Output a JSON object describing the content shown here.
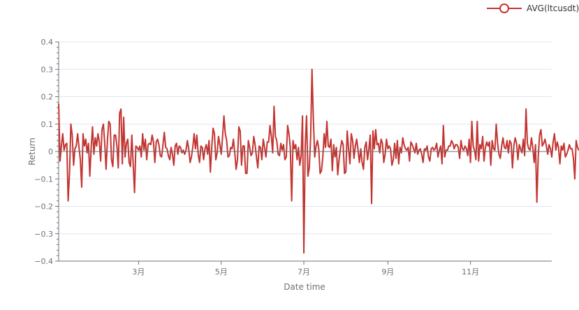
{
  "chart_data": {
    "type": "line",
    "xlabel": "Date time",
    "ylabel": "Return",
    "ylim": [
      -0.4,
      0.4
    ],
    "yticks": [
      -0.4,
      -0.3,
      -0.2,
      -0.1,
      0,
      0.1,
      0.2,
      0.3,
      0.4
    ],
    "ytick_labels": [
      "−0.4",
      "−0.3",
      "−0.2",
      "−0.1",
      "0",
      "0.1",
      "0.2",
      "0.3",
      "0.4"
    ],
    "xlim": [
      "2021-01-01",
      "2021-12-31"
    ],
    "xticks": [
      {
        "date": "2021-03-01",
        "label": "3月"
      },
      {
        "date": "2021-05-01",
        "label": "5月"
      },
      {
        "date": "2021-07-01",
        "label": "7月"
      },
      {
        "date": "2021-09-01",
        "label": "9月"
      },
      {
        "date": "2021-11-01",
        "label": "11月"
      }
    ],
    "grid": "horizontal",
    "legend_position": "top-right",
    "series": [
      {
        "name": "AVG(ltcusdt)",
        "color": "#c23531",
        "x_start": "2021-01-01",
        "x_step": "1 day",
        "values": [
          0.175,
          -0.035,
          0.02,
          0.065,
          0.005,
          0.025,
          0.03,
          -0.18,
          -0.08,
          0.1,
          0.06,
          -0.05,
          0.01,
          0.02,
          0.065,
          0.015,
          -0.03,
          -0.13,
          0.065,
          0.02,
          0.045,
          -0.005,
          0.03,
          -0.09,
          0.015,
          0.09,
          -0.01,
          0.05,
          0.02,
          0.065,
          0.035,
          -0.035,
          0.08,
          0.1,
          0.03,
          -0.065,
          0.04,
          0.11,
          0.1,
          -0.03,
          -0.055,
          0.06,
          0.06,
          0.02,
          -0.06,
          0.14,
          0.155,
          -0.045,
          0.125,
          -0.02,
          0.03,
          0.045,
          -0.04,
          -0.055,
          0.06,
          -0.045,
          -0.15,
          0.02,
          0.015,
          0.005,
          0.02,
          -0.02,
          0.065,
          0.005,
          0.045,
          -0.03,
          0.025,
          0.03,
          0.025,
          0.06,
          0.035,
          -0.04,
          0.035,
          0.045,
          0.025,
          -0.015,
          -0.02,
          0.025,
          0.07,
          0.015,
          0.01,
          -0.015,
          -0.03,
          0.015,
          -0.01,
          -0.05,
          0.02,
          0.03,
          -0.01,
          0.02,
          0.015,
          -0.005,
          0.005,
          -0.01,
          0.005,
          0.04,
          0.01,
          -0.04,
          -0.02,
          0.015,
          0.065,
          0.01,
          0.06,
          -0.01,
          -0.04,
          0.02,
          0.015,
          -0.03,
          0.01,
          0.025,
          -0.01,
          0.04,
          -0.075,
          0.015,
          0.085,
          0.065,
          -0.03,
          -0.005,
          0.055,
          0.025,
          -0.01,
          0.055,
          0.13,
          0.065,
          0.04,
          -0.02,
          -0.015,
          0.015,
          0.01,
          0.045,
          -0.005,
          -0.065,
          -0.03,
          0.09,
          0.075,
          -0.05,
          0.02,
          0.02,
          -0.08,
          -0.08,
          0.04,
          0.015,
          -0.015,
          -0.005,
          0.055,
          0.025,
          -0.02,
          -0.06,
          0.02,
          0.015,
          -0.03,
          0.045,
          0.015,
          -0.02,
          0.035,
          0.035,
          0.095,
          0.055,
          -0.005,
          0.165,
          0.055,
          0.04,
          -0.01,
          -0.015,
          0.03,
          0.005,
          0.025,
          -0.03,
          -0.02,
          0.095,
          0.065,
          0.015,
          -0.18,
          0.04,
          0.01,
          0.025,
          -0.03,
          0.015,
          -0.05,
          -0.015,
          0.13,
          -0.37,
          0.02,
          0.13,
          -0.09,
          -0.06,
          0.05,
          0.3,
          0.12,
          -0.02,
          0.02,
          0.04,
          0.01,
          -0.08,
          -0.07,
          -0.02,
          0.065,
          0.015,
          0.11,
          0.02,
          0.015,
          0.045,
          -0.07,
          0.025,
          -0.02,
          0.015,
          -0.085,
          -0.03,
          0.01,
          0.04,
          0.025,
          -0.08,
          -0.075,
          0.075,
          0.01,
          -0.045,
          0.065,
          0.04,
          -0.025,
          0.02,
          0.045,
          0.005,
          -0.04,
          0.01,
          -0.04,
          -0.065,
          0.015,
          0.035,
          -0.03,
          0.01,
          0.06,
          -0.19,
          0.075,
          0.01,
          0.08,
          0.025,
          0.03,
          -0.005,
          0.045,
          0.03,
          -0.04,
          -0.01,
          0.045,
          0.01,
          0.02,
          0.01,
          -0.05,
          -0.03,
          0.03,
          -0.025,
          0.04,
          -0.045,
          0.015,
          -0.005,
          0.05,
          0.025,
          0.01,
          0.005,
          0.015,
          -0.035,
          0.035,
          0.025,
          0.01,
          -0.005,
          0.03,
          -0.01,
          0.005,
          0.01,
          -0.01,
          -0.04,
          0.01,
          0.005,
          0.02,
          -0.02,
          -0.035,
          0.01,
          0.015,
          0.005,
          0.01,
          0.03,
          -0.02,
          0.005,
          0.02,
          -0.045,
          0.095,
          -0.02,
          0.005,
          0.005,
          0.02,
          0.02,
          0.04,
          0.03,
          0.01,
          0.025,
          0.025,
          0.015,
          -0.025,
          0.04,
          0.01,
          0.005,
          0.02,
          0.01,
          -0.015,
          0.045,
          -0.04,
          0.11,
          0.02,
          0.005,
          -0.03,
          0.11,
          -0.035,
          0.025,
          0.01,
          0.055,
          -0.035,
          0.015,
          0.035,
          0.02,
          0.035,
          -0.05,
          0.04,
          0.01,
          0.005,
          0.1,
          0.03,
          -0.01,
          -0.025,
          0.02,
          0.05,
          0.015,
          0.01,
          0.04,
          -0.005,
          0.04,
          0.03,
          -0.06,
          0.02,
          0.05,
          0.03,
          -0.03,
          0.025,
          0.01,
          -0.005,
          0.045,
          -0.015,
          0.155,
          0.03,
          0.01,
          0.005,
          0.05,
          0.015,
          -0.04,
          0.025,
          -0.185,
          -0.02,
          0.06,
          0.08,
          0.02,
          0.03,
          0.045,
          0.02,
          -0.01,
          0.025,
          0.01,
          -0.02,
          0.035,
          0.065,
          0.005,
          0.035,
          0.015,
          -0.045,
          0.02,
          0.005,
          0.03,
          -0.02,
          -0.01,
          0.005,
          0.025,
          0.01,
          0.01,
          -0.025,
          -0.1,
          0.04,
          0.015,
          0.005,
          0.01,
          0.085,
          0.035,
          -0.025,
          -0.02,
          0.015,
          0.08,
          0.035,
          0.02,
          -0.055,
          -0.005,
          0.04,
          0.02,
          0.025,
          0.005,
          0.01,
          0.03,
          0.025,
          -0.01,
          0.02,
          0.035,
          -0.025,
          0.005,
          0.015,
          0.01,
          0.02,
          0.015,
          0.025,
          0.06,
          -0.045,
          0.095,
          -0.005,
          0.025,
          0.045,
          0.01,
          0.025,
          0.01,
          -0.05,
          0.045,
          0.01,
          -0.01,
          0.025,
          -0.01,
          -0.045,
          0.025,
          0.01,
          0.015,
          0.015,
          0.025,
          -0.02,
          -0.03,
          -0.065,
          0.015,
          0.005,
          -0.01,
          0.055,
          0.005,
          -0.01,
          0.02,
          0.045,
          0.045,
          0.03,
          -0.015,
          -0.095,
          0.025,
          0.02,
          0.015,
          0.14,
          0.145,
          0.065,
          -0.03,
          -0.005,
          0.01,
          0.005,
          -0.02,
          0.015,
          0.01,
          0.035,
          -0.035,
          -0.025,
          0.025,
          0.075,
          0.04,
          -0.045,
          0.025,
          -0.02,
          -0.09,
          0.015,
          0.005,
          0.01,
          0.015,
          0.05,
          0.015,
          -0.035,
          0.02,
          0.075,
          -0.01,
          0.03,
          0.02,
          -0.025,
          0.06,
          0.01,
          0.065,
          0.02,
          0.01,
          -0.035,
          -0.015,
          0.03,
          0.02,
          0.015,
          0.03,
          0.035,
          0.025,
          0.015,
          -0.08,
          0.01,
          0.015,
          0.03,
          0.035,
          -0.01,
          0.02,
          0.005,
          -0.015,
          -0.01,
          0.035,
          0.025,
          0.02,
          0.015,
          0.025,
          -0.025,
          0.025,
          0.005,
          -0.01,
          -0.06,
          -0.02,
          0.02,
          0.005,
          -0.005,
          0.025,
          0.015,
          -0.01,
          0.025,
          0.03
        ]
      }
    ]
  }
}
